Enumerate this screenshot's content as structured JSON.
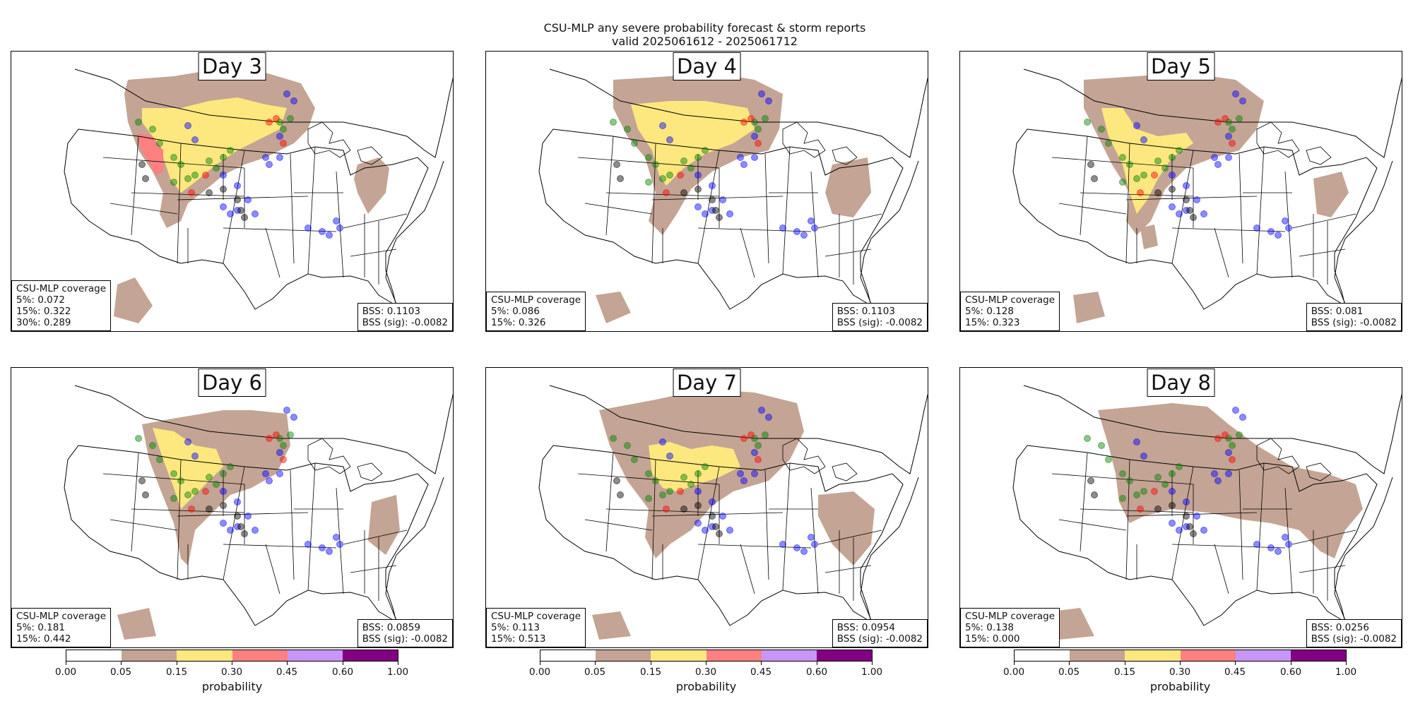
{
  "chart_data": {
    "type": "map-panels",
    "title": "CSU-MLP any severe probability forecast & storm reports",
    "subtitle": "valid 2025061612 - 2025061712",
    "colorbar": {
      "label": "probability",
      "ticks": [
        "0.00",
        "0.05",
        "0.15",
        "0.30",
        "0.45",
        "0.60",
        "1.00"
      ],
      "bins": [
        {
          "range": [
            0.0,
            0.05
          ],
          "color": "#ffffff"
        },
        {
          "range": [
            0.05,
            0.15
          ],
          "color": "#c4a494"
        },
        {
          "range": [
            0.15,
            0.3
          ],
          "color": "#fde87f"
        },
        {
          "range": [
            0.3,
            0.45
          ],
          "color": "#fe8080"
        },
        {
          "range": [
            0.45,
            0.6
          ],
          "color": "#c896f6"
        },
        {
          "range": [
            0.6,
            1.0
          ],
          "color": "#820081"
        }
      ]
    },
    "report_colors": {
      "wind": "#0000ff",
      "hail": "#008000",
      "tornado": "#ff0000",
      "sig": "#000000"
    },
    "panels": [
      {
        "day": "Day 3",
        "coverage_title": "CSU-MLP coverage",
        "coverage": [
          "5%: 0.072",
          "15%: 0.322",
          "30%: 0.289"
        ],
        "bss": "BSS: 0.1103",
        "bss_sig": "BSS (sig): -0.0082",
        "max_level": 3
      },
      {
        "day": "Day 4",
        "coverage_title": "CSU-MLP coverage",
        "coverage": [
          "5%: 0.086",
          "15%: 0.326"
        ],
        "bss": "BSS: 0.1103",
        "bss_sig": "BSS (sig): -0.0082",
        "max_level": 2
      },
      {
        "day": "Day 5",
        "coverage_title": "CSU-MLP coverage",
        "coverage": [
          "5%: 0.128",
          "15%: 0.323"
        ],
        "bss": "BSS: 0.081",
        "bss_sig": "BSS (sig): -0.0082",
        "max_level": 2
      },
      {
        "day": "Day 6",
        "coverage_title": "CSU-MLP coverage",
        "coverage": [
          "5%: 0.181",
          "15%: 0.442"
        ],
        "bss": "BSS: 0.0859",
        "bss_sig": "BSS (sig): -0.0082",
        "max_level": 2
      },
      {
        "day": "Day 7",
        "coverage_title": "CSU-MLP coverage",
        "coverage": [
          "5%: 0.113",
          "15%: 0.513"
        ],
        "bss": "BSS: 0.0954",
        "bss_sig": "BSS (sig): -0.0082",
        "max_level": 2
      },
      {
        "day": "Day 8",
        "coverage_title": "CSU-MLP coverage",
        "coverage": [
          "5%: 0.138",
          "15%: 0.000"
        ],
        "bss": "BSS: 0.0256",
        "bss_sig": "BSS (sig): -0.0082",
        "max_level": 1
      }
    ]
  }
}
